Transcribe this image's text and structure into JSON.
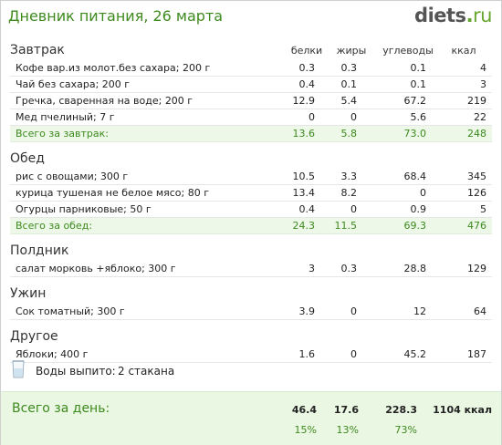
{
  "header": {
    "title": "Дневник питания, 26 марта",
    "logo_main": "diets",
    "logo_dot": ".",
    "logo_tld": "ru"
  },
  "columns": [
    "белки",
    "жиры",
    "углеводы",
    "ккал"
  ],
  "meals": [
    {
      "title": "Завтрак",
      "show_columns": true,
      "items": [
        {
          "name": "Кофе вар.из молот.без сахара; 200 г",
          "protein": "0.3",
          "fat": "0.3",
          "carbs": "0.1",
          "kcal": "4"
        },
        {
          "name": "Чай без сахара; 200 г",
          "protein": "0.4",
          "fat": "0.1",
          "carbs": "0.1",
          "kcal": "3"
        },
        {
          "name": "Гречка, сваренная на воде; 200 г",
          "protein": "12.9",
          "fat": "5.4",
          "carbs": "67.2",
          "kcal": "219"
        },
        {
          "name": "Мед пчелиный; 7 г",
          "protein": "0",
          "fat": "0",
          "carbs": "5.6",
          "kcal": "22"
        }
      ],
      "total": {
        "name": "Всего за завтрак:",
        "protein": "13.6",
        "fat": "5.8",
        "carbs": "73.0",
        "kcal": "248"
      }
    },
    {
      "title": "Обед",
      "items": [
        {
          "name": "рис с овощами; 300 г",
          "protein": "10.5",
          "fat": "3.3",
          "carbs": "68.4",
          "kcal": "345"
        },
        {
          "name": "курица тушеная не белое мясо; 80 г",
          "protein": "13.4",
          "fat": "8.2",
          "carbs": "0",
          "kcal": "126"
        },
        {
          "name": "Огурцы парниковые; 50 г",
          "protein": "0.4",
          "fat": "0",
          "carbs": "0.9",
          "kcal": "5"
        }
      ],
      "total": {
        "name": "Всего за обед:",
        "protein": "24.3",
        "fat": "11.5",
        "carbs": "69.3",
        "kcal": "476"
      }
    },
    {
      "title": "Полдник",
      "items": [
        {
          "name": "салат морковь +яблоко; 300 г",
          "protein": "3",
          "fat": "0.3",
          "carbs": "28.8",
          "kcal": "129"
        }
      ]
    },
    {
      "title": "Ужин",
      "items": [
        {
          "name": "Сок томатный; 300 г",
          "protein": "3.9",
          "fat": "0",
          "carbs": "12",
          "kcal": "64"
        }
      ]
    },
    {
      "title": "Другое",
      "items": [
        {
          "name": "Яблоки; 400 г",
          "protein": "1.6",
          "fat": "0",
          "carbs": "45.2",
          "kcal": "187"
        }
      ]
    }
  ],
  "water": {
    "icon": "glass-icon",
    "label": "Воды выпито:",
    "value": "2 стакана"
  },
  "day_total": {
    "label": "Всего за день:",
    "protein": "46.4",
    "fat": "17.6",
    "carbs": "228.3",
    "kcal": "1104 ккал",
    "protein_pct": "15%",
    "fat_pct": "13%",
    "carbs_pct": "73%"
  },
  "colors": {
    "accent": "#3d8a1e",
    "total_bg": "#edf8e8",
    "day_bg": "#eaf7e3"
  }
}
